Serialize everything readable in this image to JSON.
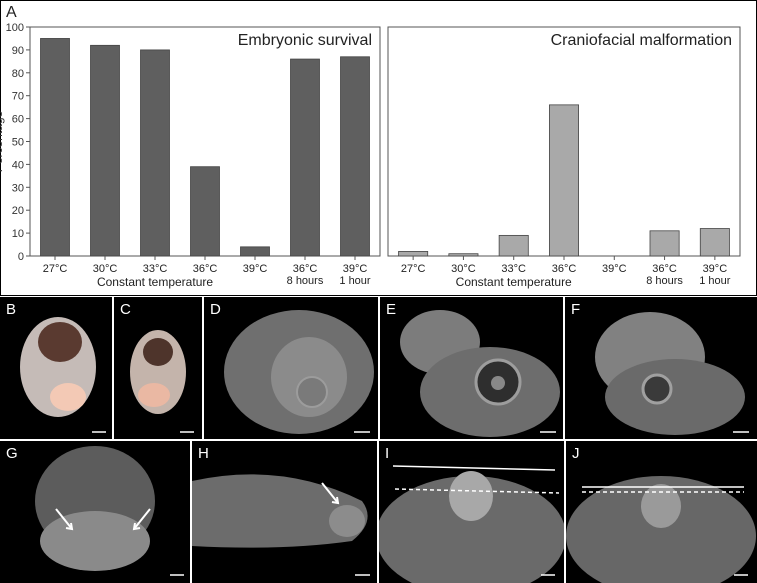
{
  "figure": {
    "panel_labels": [
      "A",
      "B",
      "C",
      "D",
      "E",
      "F",
      "G",
      "H",
      "I",
      "J"
    ]
  },
  "chart_data": [
    {
      "type": "bar",
      "title": "Embryonic survival",
      "ylabel": "Percentage",
      "xlabel": "Constant temperature",
      "ylim": [
        0,
        100
      ],
      "yticks": [
        0,
        10,
        20,
        30,
        40,
        50,
        60,
        70,
        80,
        90,
        100
      ],
      "categories": [
        "27°C",
        "30°C",
        "33°C",
        "36°C",
        "39°C",
        "36°C\n8 hours",
        "39°C\n1 hour"
      ],
      "values": [
        95,
        92,
        90,
        39,
        4,
        86,
        87
      ],
      "bar_color": "#5f5f5f",
      "grid": false
    },
    {
      "type": "bar",
      "title": "Craniofacial malformation",
      "ylabel": "",
      "xlabel": "Constant temperature",
      "ylim": [
        0,
        100
      ],
      "categories": [
        "27°C",
        "30°C",
        "33°C",
        "36°C",
        "39°C",
        "36°C\n8 hours",
        "39°C\n1 hour"
      ],
      "values": [
        2,
        1,
        9,
        66,
        0,
        11,
        12
      ],
      "bar_color": "#a9a9a9",
      "grid": false
    }
  ]
}
